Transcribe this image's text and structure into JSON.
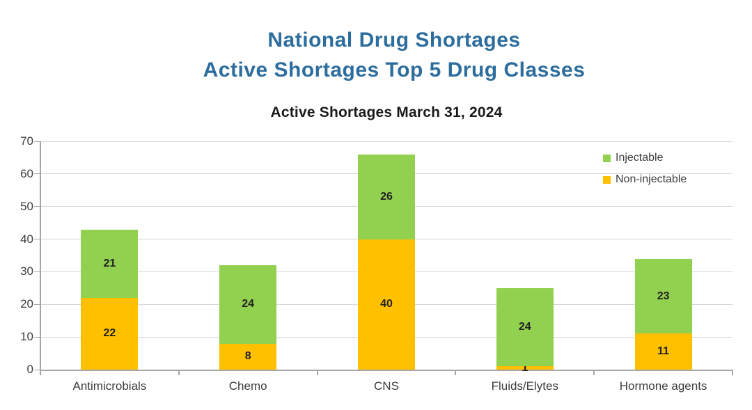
{
  "page": {
    "title_line1": "National Drug Shortages",
    "title_line2": "Active Shortages Top 5 Drug Classes",
    "title_color": "#2d6d9d"
  },
  "chart_data": {
    "type": "bar",
    "stacked": true,
    "title": "Active Shortages March 31, 2024",
    "categories": [
      "Antimicrobials",
      "Chemo",
      "CNS",
      "Fluids/Elytes",
      "Hormone agents"
    ],
    "series": [
      {
        "name": "Non-injectable",
        "color": "#FFC000",
        "values": [
          22,
          8,
          40,
          1,
          11
        ]
      },
      {
        "name": "Injectable",
        "color": "#92D050",
        "values": [
          21,
          24,
          26,
          24,
          23
        ]
      }
    ],
    "totals": [
      43,
      32,
      66,
      25,
      34
    ],
    "xlabel": "",
    "ylabel": "",
    "ylim": [
      0,
      70
    ],
    "yticks": [
      0,
      10,
      20,
      30,
      40,
      50,
      60,
      70
    ],
    "grid": true,
    "legend_position": "top-right",
    "legend_order": [
      "Injectable",
      "Non-injectable"
    ]
  },
  "style_colors": {
    "gridline": "#d6d6d6",
    "axis": "#a6a6a6",
    "tick_label": "#3d3d3d",
    "value_label": "#222222"
  }
}
